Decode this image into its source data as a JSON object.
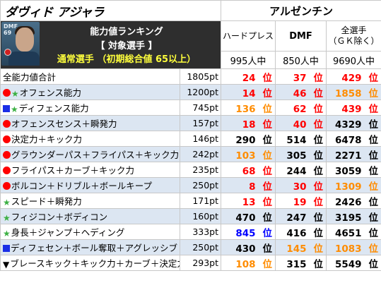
{
  "header": {
    "player_name": "ダヴィド アジャラ",
    "team": "アルゼンチン",
    "card_position": "DMF",
    "card_rating": "69",
    "ranking_title": "能力値ランキング",
    "ranking_subject": "【 対象選手 】",
    "ranking_condition": "通常選手  （初期総合値 65以上）"
  },
  "columns": [
    {
      "label": "ハードプレス",
      "count": "995人中"
    },
    {
      "label": "DMF",
      "count": "850人中"
    },
    {
      "label": "全選手\n（ＧＫ除く）",
      "count": "9690人中"
    }
  ],
  "rank_unit": "位",
  "colors": {
    "gold": "#ffc000",
    "red": "#ff0000",
    "orange": "#ff8c00",
    "blue": "#0000ff",
    "black": "#000000",
    "row_shade": "#dce6f2"
  },
  "rows": [
    {
      "marker": "",
      "label": "全能力値合計",
      "pt": "1805pt",
      "ranks": [
        {
          "v": "24",
          "c": "red"
        },
        {
          "v": "37",
          "c": "red"
        },
        {
          "v": "429",
          "c": "red"
        }
      ]
    },
    {
      "marker": "dot-star",
      "label": "オフェンス能力",
      "pt": "1200pt",
      "ranks": [
        {
          "v": "14",
          "c": "red"
        },
        {
          "v": "46",
          "c": "red"
        },
        {
          "v": "1858",
          "c": "orange"
        }
      ]
    },
    {
      "marker": "square-star",
      "label": "ディフェンス能力",
      "pt": "745pt",
      "ranks": [
        {
          "v": "136",
          "c": "orange"
        },
        {
          "v": "62",
          "c": "red"
        },
        {
          "v": "439",
          "c": "red"
        }
      ]
    },
    {
      "marker": "dot",
      "label": "オフェンスセンス＋瞬発力",
      "pt": "157pt",
      "ranks": [
        {
          "v": "18",
          "c": "red"
        },
        {
          "v": "40",
          "c": "red"
        },
        {
          "v": "4329",
          "c": "black"
        }
      ]
    },
    {
      "marker": "dot",
      "label": "決定力＋キック力",
      "pt": "146pt",
      "ranks": [
        {
          "v": "290",
          "c": "black"
        },
        {
          "v": "514",
          "c": "black"
        },
        {
          "v": "6478",
          "c": "black"
        }
      ]
    },
    {
      "marker": "dot",
      "label": "グラウンダーパス＋フライパス＋キック力",
      "pt": "242pt",
      "ranks": [
        {
          "v": "103",
          "c": "orange"
        },
        {
          "v": "305",
          "c": "black"
        },
        {
          "v": "2271",
          "c": "black"
        }
      ]
    },
    {
      "marker": "dot",
      "label": "フライパス＋カーブ＋キック力",
      "pt": "235pt",
      "ranks": [
        {
          "v": "68",
          "c": "red"
        },
        {
          "v": "244",
          "c": "black"
        },
        {
          "v": "3059",
          "c": "black"
        }
      ]
    },
    {
      "marker": "dot",
      "label": "ボルコン＋ドリブル＋ボールキープ",
      "pt": "250pt",
      "ranks": [
        {
          "v": "8",
          "c": "red"
        },
        {
          "v": "30",
          "c": "red"
        },
        {
          "v": "1309",
          "c": "orange"
        }
      ]
    },
    {
      "marker": "star",
      "label": "スピード＋瞬発力",
      "pt": "171pt",
      "ranks": [
        {
          "v": "13",
          "c": "red"
        },
        {
          "v": "19",
          "c": "red"
        },
        {
          "v": "2426",
          "c": "black"
        }
      ]
    },
    {
      "marker": "star",
      "label": "フィジコン＋ボディコン",
      "pt": "160pt",
      "ranks": [
        {
          "v": "470",
          "c": "black"
        },
        {
          "v": "247",
          "c": "black"
        },
        {
          "v": "3195",
          "c": "black"
        }
      ]
    },
    {
      "marker": "star",
      "label": "身長＋ジャンプ＋ヘディング",
      "pt": "333pt",
      "ranks": [
        {
          "v": "845",
          "c": "blue"
        },
        {
          "v": "416",
          "c": "black"
        },
        {
          "v": "4651",
          "c": "black"
        }
      ]
    },
    {
      "marker": "square",
      "label": "ディフェセン＋ボール奪取＋アグレッシブ",
      "pt": "250pt",
      "ranks": [
        {
          "v": "430",
          "c": "black"
        },
        {
          "v": "145",
          "c": "orange"
        },
        {
          "v": "1083",
          "c": "orange"
        }
      ]
    },
    {
      "marker": "triangle",
      "label": "ブレースキック＋キック力＋カーブ＋決定力",
      "pt": "293pt",
      "ranks": [
        {
          "v": "108",
          "c": "orange"
        },
        {
          "v": "315",
          "c": "black"
        },
        {
          "v": "5549",
          "c": "black"
        }
      ]
    }
  ]
}
